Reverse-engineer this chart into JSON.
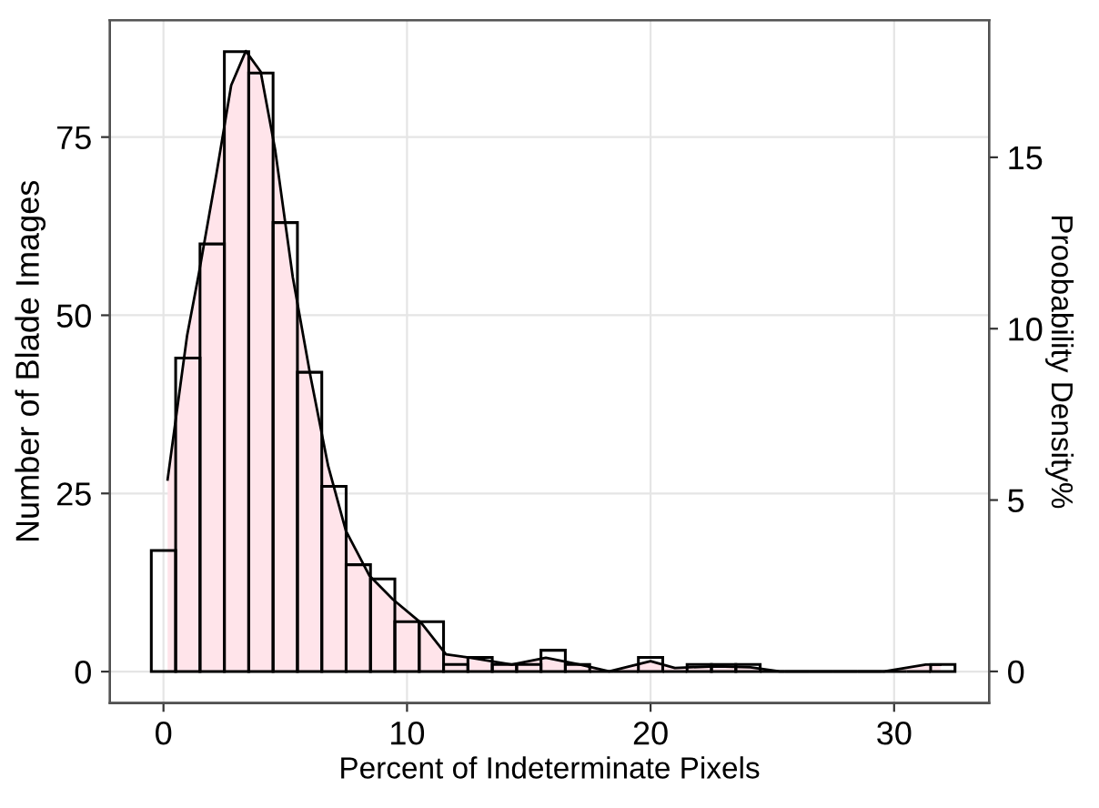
{
  "chart_data": {
    "type": "histogram",
    "xlabel": "Percent of Indeterminate Pixels",
    "ylabel": "Number of Blade Images",
    "y2label": "Proobability Density%",
    "bins": [
      -0.5,
      0.5,
      1.5,
      2.5,
      3.5,
      4.5,
      5.5,
      6.5,
      7.5,
      8.5,
      9.5,
      10.5,
      11.5,
      12.5,
      13.5,
      14.5,
      15.5,
      16.5,
      17.5,
      18.5,
      19.5,
      20.5,
      21.5,
      22.5,
      23.5,
      24.5,
      25.5,
      26.5,
      27.5,
      28.5,
      29.5,
      30.5,
      31.5,
      32.5
    ],
    "values": [
      17,
      44,
      60,
      87,
      84,
      63,
      42,
      26,
      15,
      13,
      7,
      7,
      1,
      2,
      1,
      1,
      3,
      1,
      0,
      0,
      2,
      0,
      1,
      1,
      1,
      0,
      0,
      0,
      0,
      0,
      0,
      0,
      1
    ],
    "color": "#000000",
    "series": [
      {
        "type": "area",
        "axis": "y2",
        "color": "#ffe4ea",
        "x": [
          0.17,
          0.97,
          1.45,
          2.17,
          2.78,
          3.38,
          3.99,
          4.59,
          5.31,
          6.04,
          6.76,
          7.49,
          8.45,
          9.42,
          10.6,
          11.6,
          12.6,
          14.3,
          15.7,
          17.1,
          18.3,
          20.0,
          21.0,
          22.7,
          24.1,
          25.3,
          29.6,
          31.3,
          31.9
        ],
        "values": [
          5.6,
          9.8,
          11.6,
          14.5,
          17.1,
          18.1,
          17.5,
          15.2,
          11.5,
          8.6,
          6.0,
          4.1,
          2.8,
          2.1,
          1.4,
          0.5,
          0.4,
          0.2,
          0.4,
          0.2,
          0,
          0.3,
          0.1,
          0.15,
          0.12,
          0,
          0,
          0.2,
          0.2
        ]
      }
    ],
    "xlim": [
      -2.2,
      33.9
    ],
    "xticks": [
      0,
      10,
      20,
      30
    ],
    "ylim": [
      -4.4,
      91.4
    ],
    "yticks": [
      0,
      25,
      50,
      75
    ],
    "y2lim": [
      -0.92,
      19.0
    ],
    "y2ticks": [
      0,
      5,
      10,
      15
    ],
    "grid": true
  }
}
